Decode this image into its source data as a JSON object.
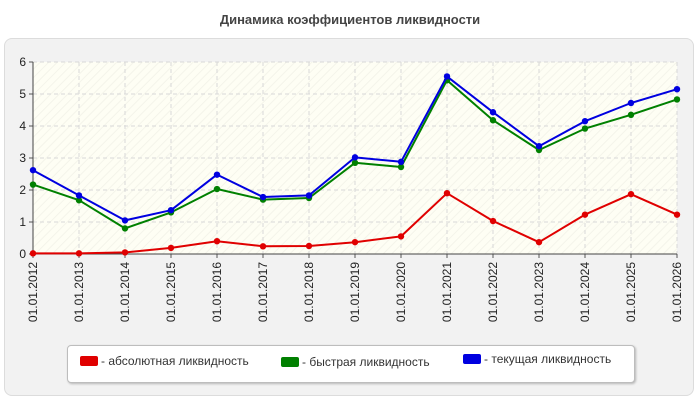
{
  "chart_data": {
    "type": "line",
    "title": "Динамика коэффициентов ликвидности",
    "categories": [
      "01.01.2012",
      "01.01.2013",
      "01.01.2014",
      "01.01.2015",
      "01.01.2016",
      "01.01.2017",
      "01.01.2018",
      "01.01.2019",
      "01.01.2020",
      "01.01.2021",
      "01.01.2022",
      "01.01.2023",
      "01.01.2024",
      "01.01.2025",
      "01.01.2026"
    ],
    "ylim": [
      0,
      6
    ],
    "yticks": [
      "0",
      "1",
      "2",
      "3",
      "4",
      "5",
      "6"
    ],
    "grid": true,
    "legend_position": "bottom",
    "series": [
      {
        "name": "- абсолютная ликвидность",
        "color": "#e00000",
        "values": [
          0.02,
          0.02,
          0.05,
          0.19,
          0.4,
          0.24,
          0.25,
          0.37,
          0.55,
          1.9,
          1.03,
          0.37,
          1.23,
          1.87,
          1.23
        ]
      },
      {
        "name": "- быстрая ликвидность",
        "color": "#008000",
        "values": [
          2.17,
          1.68,
          0.8,
          1.3,
          2.03,
          1.7,
          1.75,
          2.85,
          2.72,
          5.43,
          4.18,
          3.25,
          3.92,
          4.35,
          4.83
        ]
      },
      {
        "name": "- текущая ликвидность",
        "color": "#0000e0",
        "values": [
          2.62,
          1.83,
          1.05,
          1.37,
          2.48,
          1.78,
          1.83,
          3.02,
          2.88,
          5.55,
          4.43,
          3.37,
          4.15,
          4.72,
          5.15
        ]
      }
    ]
  }
}
